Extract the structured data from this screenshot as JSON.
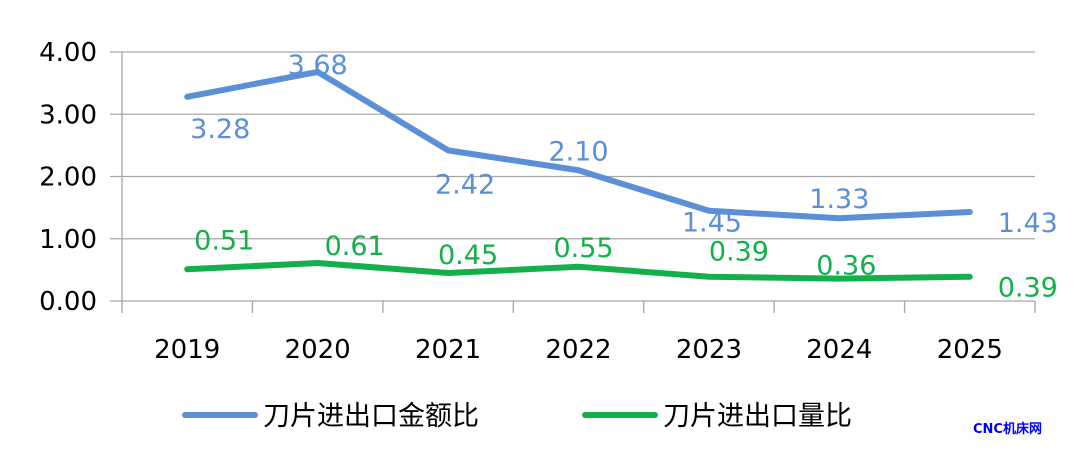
{
  "chart_data": {
    "type": "line",
    "title": "",
    "xlabel": "",
    "ylabel": "",
    "categories": [
      "2019",
      "2020",
      "2021",
      "2022",
      "2023",
      "2024",
      "2025"
    ],
    "ylim": [
      0,
      4
    ],
    "yticks": [
      "0.00",
      "1.00",
      "2.00",
      "3.00",
      "4.00"
    ],
    "grid": true,
    "legend_position": "bottom",
    "series": [
      {
        "name": "刀片进出口金额比",
        "color": "#5b8fd8",
        "values": [
          3.28,
          3.68,
          2.42,
          2.1,
          1.45,
          1.33,
          1.43
        ],
        "labels": [
          "3.28",
          "3.68",
          "2.42",
          "2.10",
          "1.45",
          "1.33",
          "1.43"
        ]
      },
      {
        "name": "刀片进出口量比",
        "color": "#13b04a",
        "values": [
          0.51,
          0.61,
          0.45,
          0.55,
          0.39,
          0.36,
          0.39
        ],
        "labels": [
          "0.51",
          "0.61",
          "0.45",
          "0.55",
          "0.39",
          "0.36",
          "0.39"
        ]
      }
    ]
  },
  "watermark": "CNC机床网"
}
